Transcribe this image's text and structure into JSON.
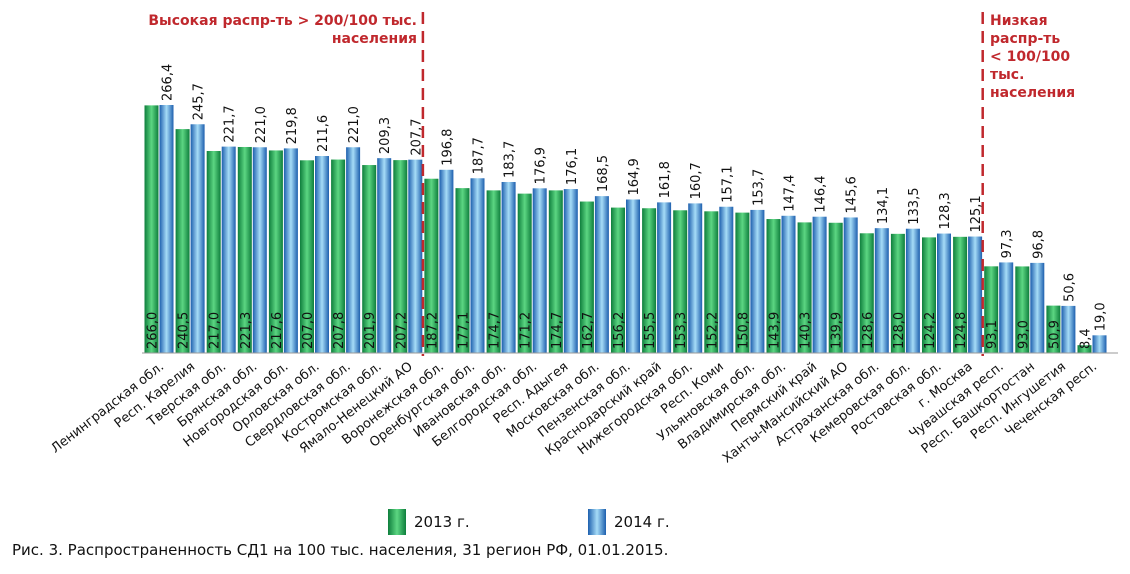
{
  "chart_data": {
    "type": "bar",
    "categories": [
      "Ленинградская обл.",
      "Респ. Карелия",
      "Тверская обл.",
      "Брянская обл.",
      "Новгородская обл.",
      "Орловская обл.",
      "Свердловская обл.",
      "Костромская обл.",
      "Ямало-Ненецкий АО",
      "Воронежская обл.",
      "Оренбургская обл.",
      "Ивановская обл.",
      "Белгородская обл.",
      "Респ. Адыгея",
      "Московская обл.",
      "Пензенская обл.",
      "Краснодарский край",
      "Нижегородская обл.",
      "Респ. Коми",
      "Ульяновская обл.",
      "Владимирская обл.",
      "Пермский край",
      "Ханты-Мансийский АО",
      "Астраханская обл.",
      "Кемеровская обл.",
      "Ростовская обл.",
      "г. Москва",
      "Чувашская респ.",
      "Респ. Башкортостан",
      "Респ. Ингушетия",
      "Чеченская респ."
    ],
    "series": [
      {
        "name": "2013 г.",
        "values": [
          266.0,
          240.5,
          217.0,
          221.3,
          217.6,
          207.0,
          207.8,
          201.9,
          207.2,
          187.2,
          177.1,
          174.7,
          171.2,
          174.7,
          162.7,
          156.2,
          155.5,
          153.3,
          152.2,
          150.8,
          143.9,
          140.3,
          139.9,
          128.6,
          128.0,
          124.2,
          124.8,
          93.1,
          93.0,
          50.9,
          8.4
        ],
        "labels": [
          "266,0",
          "240,5",
          "217,0",
          "221,3",
          "217,6",
          "207,0",
          "207,8",
          "201,9",
          "207,2",
          "187,2",
          "177,1",
          "174,7",
          "171,2",
          "174,7",
          "162,7",
          "156,2",
          "155,5",
          "153,3",
          "152,2",
          "150,8",
          "143,9",
          "140,3",
          "139,9",
          "128,6",
          "128,0",
          "124,2",
          "124,8",
          "93,1",
          "93,0",
          "50,9",
          "8,4"
        ],
        "color": "#2aa455"
      },
      {
        "name": "2014 г.",
        "values": [
          266.4,
          245.7,
          221.7,
          221.0,
          219.8,
          211.6,
          221.0,
          209.3,
          207.7,
          196.8,
          187.7,
          183.7,
          176.9,
          176.1,
          168.5,
          164.9,
          161.8,
          160.7,
          157.1,
          153.7,
          147.4,
          146.4,
          145.6,
          134.1,
          133.5,
          128.3,
          125.1,
          97.3,
          96.8,
          50.6,
          19.0
        ],
        "labels": [
          "266,4",
          "245,7",
          "221,7",
          "221,0",
          "219,8",
          "211,6",
          "221,0",
          "209,3",
          "207,7",
          "196,8",
          "187,7",
          "183,7",
          "176,9",
          "176,1",
          "168,5",
          "164,9",
          "161,8",
          "160,7",
          "157,1",
          "153,7",
          "147,4",
          "146,4",
          "145,6",
          "134,1",
          "133,5",
          "128,3",
          "125,1",
          "97,3",
          "96,8",
          "50,6",
          "19,0"
        ],
        "color": "#4f9ede"
      }
    ],
    "annotations": [
      {
        "id": "high",
        "text": "Высокая распр-ть > 200/100 тыс. населения",
        "lines": [
          "Высокая распр-ть > 200/100 тыс.",
          "населения"
        ],
        "after_category": "Ямало-Ненецкий АО"
      },
      {
        "id": "low",
        "text": "Низкая распр-ть < 100/100 тыс. населения",
        "lines": [
          "Низкая",
          "распр-ть",
          "< 100/100",
          "тыс.",
          "населения"
        ],
        "after_category": "г. Москва"
      }
    ],
    "legend": [
      "2013 г.",
      "2014 г."
    ],
    "legend_position": "bottom",
    "title": "Рис. 3. Распространенность СД1 на 100 тыс. населения, 31 регион РФ, 01.01.2015.",
    "grid": false,
    "ylim": [
      0,
      266.4
    ]
  },
  "colors": {
    "annotation": "#c0282d",
    "green_dark": "#0e7e3c",
    "green_light": "#5cd682",
    "blue_dark": "#1d5fae",
    "blue_light": "#a6dcf7"
  }
}
